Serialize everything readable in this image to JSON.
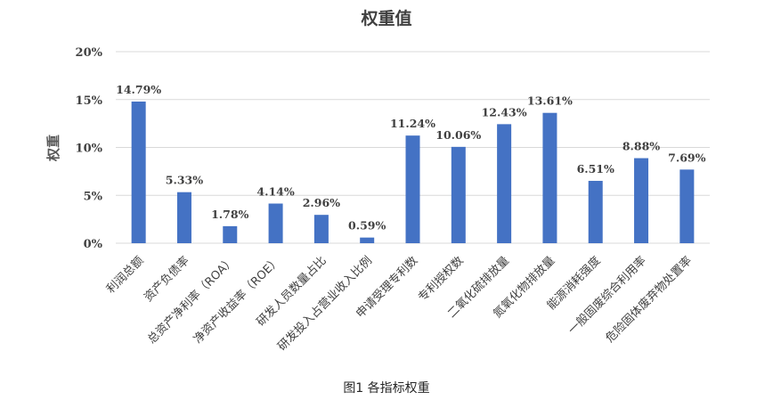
{
  "caption": "图1  各指标权重",
  "chart_data": {
    "type": "bar",
    "title": "权重值",
    "xlabel": "",
    "ylabel": "权重",
    "ylim": [
      0,
      20
    ],
    "yticks": [
      "0%",
      "5%",
      "10%",
      "15%",
      "20%"
    ],
    "grid": true,
    "legend": "none",
    "bar_color": "#4472c4",
    "categories": [
      "利润总额",
      "资产负债率",
      "总资产净利率（ROA）",
      "净资产收益率（ROE）",
      "研发人员数量占比",
      "研发投入占营业收入比例",
      "申请受理专利数",
      "专利授权数",
      "二氧化硫排放量",
      "氮氧化物排放量",
      "能源消耗强度",
      "一般固废综合利用率",
      "危险固体废弃物处置率"
    ],
    "values": [
      14.79,
      5.33,
      1.78,
      4.14,
      2.96,
      0.59,
      11.24,
      10.06,
      12.43,
      13.61,
      6.51,
      8.88,
      7.69
    ],
    "data_labels": [
      "14.79%",
      "5.33%",
      "1.78%",
      "4.14%",
      "2.96%",
      "0.59%",
      "11.24%",
      "10.06%",
      "12.43%",
      "13.61%",
      "6.51%",
      "8.88%",
      "7.69%"
    ]
  }
}
